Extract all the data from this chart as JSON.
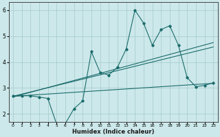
{
  "xlabel": "Humidex (Indice chaleur)",
  "x_ticks": [
    0,
    1,
    2,
    3,
    4,
    5,
    6,
    7,
    8,
    9,
    10,
    11,
    12,
    13,
    14,
    15,
    16,
    17,
    18,
    19,
    20,
    21,
    22,
    23
  ],
  "xlim": [
    -0.5,
    23.5
  ],
  "ylim": [
    1.7,
    6.3
  ],
  "y_ticks": [
    2,
    3,
    4,
    5,
    6
  ],
  "bg_color": "#cce8ea",
  "grid_color": "#aacece",
  "line_color": "#1a6b6b",
  "series1_x": [
    0,
    1,
    2,
    3,
    4,
    5,
    6,
    7,
    8,
    9,
    10,
    11,
    12,
    13,
    14,
    15,
    16,
    17,
    18,
    19,
    20,
    21,
    22,
    23
  ],
  "series1_y": [
    2.7,
    2.7,
    2.7,
    2.65,
    2.6,
    1.62,
    1.62,
    2.2,
    2.5,
    4.4,
    3.6,
    3.5,
    3.8,
    4.5,
    6.0,
    5.5,
    4.65,
    5.25,
    5.4,
    4.65,
    3.4,
    3.05,
    3.1,
    3.2
  ],
  "series2_x": [
    0,
    23
  ],
  "series2_y": [
    2.68,
    3.18
  ],
  "series3_x": [
    0,
    23
  ],
  "series3_y": [
    2.65,
    4.75
  ],
  "series4_x": [
    0,
    23
  ],
  "series4_y": [
    2.68,
    4.58
  ]
}
